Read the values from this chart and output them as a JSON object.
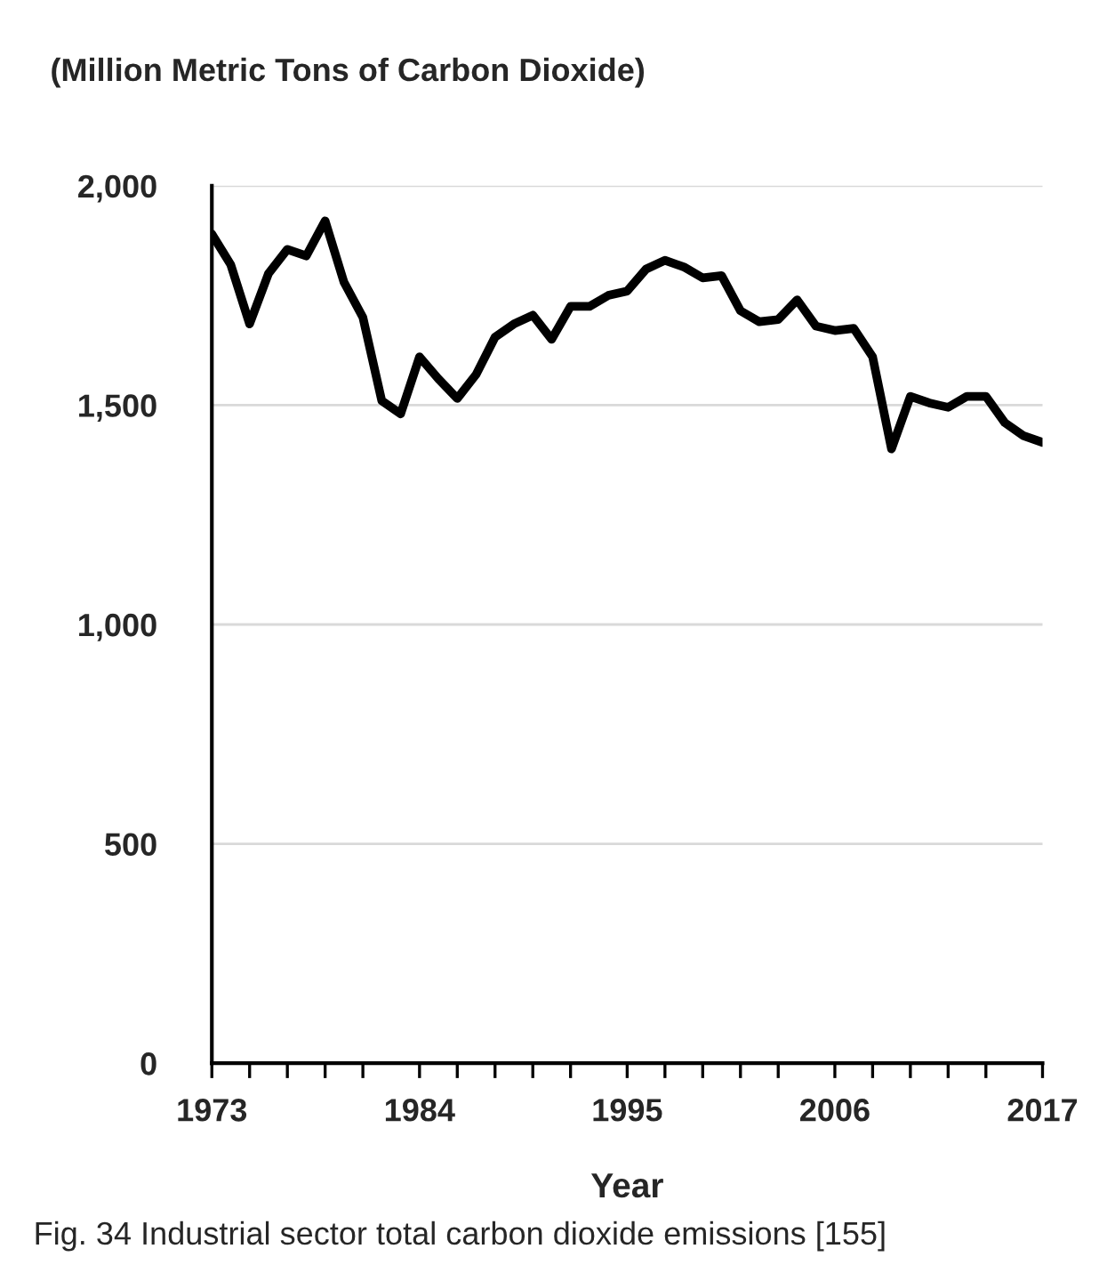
{
  "chart_data": {
    "type": "line",
    "title": "(Million Metric Tons of Carbon Dioxide)",
    "xlabel": "Year",
    "x": [
      1973,
      1974,
      1975,
      1976,
      1977,
      1978,
      1979,
      1980,
      1981,
      1982,
      1983,
      1984,
      1985,
      1986,
      1987,
      1988,
      1989,
      1990,
      1991,
      1992,
      1993,
      1994,
      1995,
      1996,
      1997,
      1998,
      1999,
      2000,
      2001,
      2002,
      2003,
      2004,
      2005,
      2006,
      2007,
      2008,
      2009,
      2010,
      2011,
      2012,
      2013,
      2014,
      2015,
      2016,
      2017
    ],
    "series": [
      {
        "color": "#000000",
        "values": [
          1890,
          1820,
          1685,
          1800,
          1855,
          1840,
          1920,
          1780,
          1700,
          1510,
          1480,
          1610,
          1560,
          1515,
          1570,
          1655,
          1685,
          1705,
          1650,
          1725,
          1725,
          1750,
          1760,
          1810,
          1830,
          1815,
          1790,
          1795,
          1715,
          1690,
          1695,
          1740,
          1680,
          1670,
          1675,
          1610,
          1400,
          1520,
          1505,
          1495,
          1520,
          1520,
          1460,
          1430,
          1415
        ]
      }
    ],
    "xlim": [
      1973,
      2017
    ],
    "xticks": [
      1973,
      {
        "value": 1975,
        "label": null
      },
      {
        "value": 1977,
        "label": null
      },
      {
        "value": 1979,
        "label": null
      },
      {
        "value": 1981,
        "label": null
      },
      1984,
      {
        "value": 1986,
        "label": null
      },
      {
        "value": 1988,
        "label": null
      },
      {
        "value": 1990,
        "label": null
      },
      {
        "value": 1992,
        "label": null
      },
      1995,
      {
        "value": 1997,
        "label": null
      },
      {
        "value": 1999,
        "label": null
      },
      {
        "value": 2001,
        "label": null
      },
      {
        "value": 2003,
        "label": null
      },
      2006,
      {
        "value": 2008,
        "label": null
      },
      {
        "value": 2010,
        "label": null
      },
      {
        "value": 2012,
        "label": null
      },
      {
        "value": 2014,
        "label": null
      },
      2017
    ],
    "ylim": [
      0,
      2000
    ],
    "yticks": [
      0,
      {
        "value": 500,
        "label": "500"
      },
      {
        "value": 1000,
        "label": "1,000"
      },
      {
        "value": 1500,
        "label": "1,500"
      },
      {
        "value": 2000,
        "label": "2,000"
      }
    ],
    "grid": "y",
    "legend": false,
    "marker": "none",
    "line_style": "solid",
    "annotations": [
      "Fig. 34 Industrial sector total carbon dioxide emissions [155]"
    ]
  }
}
